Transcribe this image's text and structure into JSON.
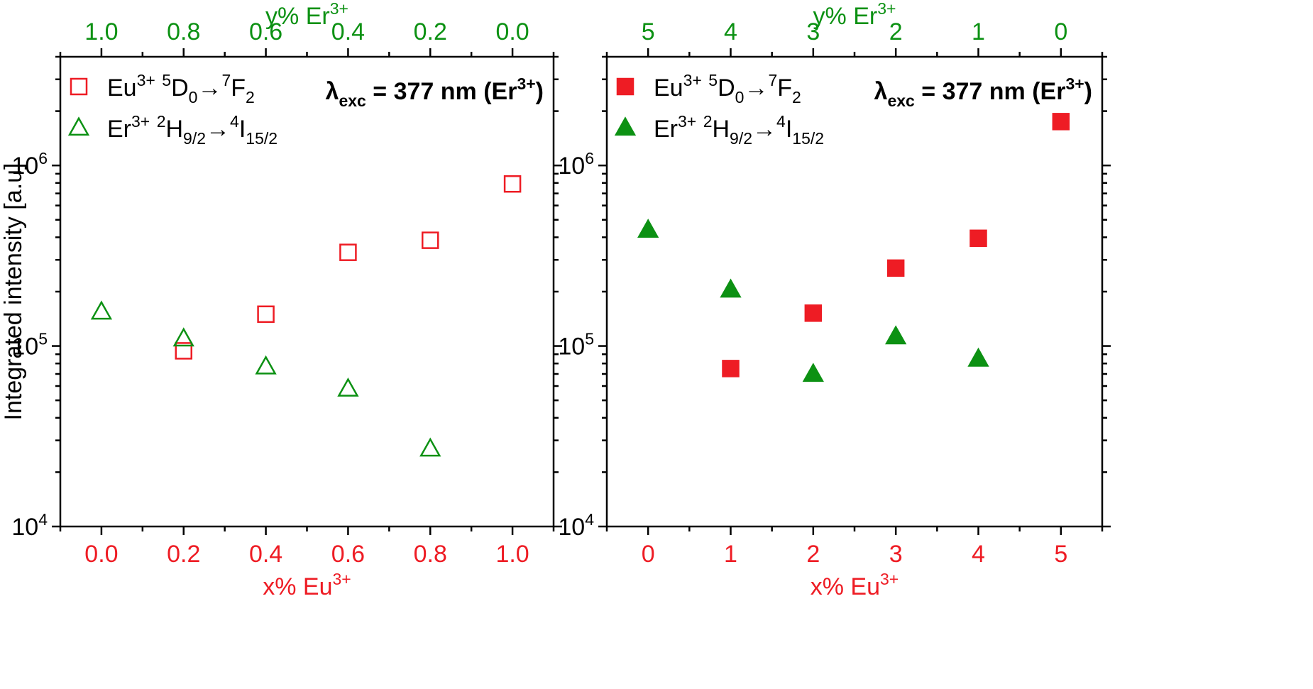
{
  "colors": {
    "eu": "#ee1c24",
    "er": "#0c9113",
    "axis": "#000000"
  },
  "ylabel": "Integrated intensity [a.u]",
  "y_tick_labels": [
    "10",
    "10",
    "10"
  ],
  "y_tick_exponents": [
    "4",
    "5",
    "6"
  ],
  "chart_data": [
    {
      "type": "scatter",
      "panel": "left",
      "xlabel": "x% Eu",
      "xlabel_sup": "3+",
      "x2label": "y% Er",
      "x2label_sup": "3+",
      "x_ticks": [
        "0.0",
        "0.2",
        "0.4",
        "0.6",
        "0.8",
        "1.0"
      ],
      "x2_ticks": [
        "1.0",
        "0.8",
        "0.6",
        "0.4",
        "0.2",
        "0.0"
      ],
      "xlim": [
        -0.1,
        1.1
      ],
      "ylim": [
        10000,
        4000000
      ],
      "yscale": "log",
      "annotation": {
        "lambda": "λ",
        "sub": "exc",
        "text": " = 377 nm (Er",
        "sup": "3+",
        "close": ")"
      },
      "legend_position": "top-left",
      "series": [
        {
          "name": "Eu",
          "name_sup": "3+",
          "level_sup": "5",
          "level": "D",
          "level_sub": "0",
          "arrow": "→",
          "final_sup": "7",
          "final": "F",
          "final_sub": "2",
          "marker": "square-open",
          "color": "#ee1c24",
          "x": [
            0.2,
            0.4,
            0.6,
            0.8,
            1.0
          ],
          "y": [
            94000,
            150000,
            330000,
            385000,
            790000
          ]
        },
        {
          "name": "Er",
          "name_sup": "3+",
          "level_sup": "2",
          "level": "H",
          "level_sub": "9/2",
          "arrow": "→",
          "final_sup": "4",
          "final": "I",
          "final_sub": "15/2",
          "marker": "triangle-open",
          "color": "#0c9113",
          "x": [
            0.0,
            0.2,
            0.4,
            0.6,
            0.8
          ],
          "y": [
            155000,
            110000,
            77000,
            58000,
            27000
          ]
        }
      ]
    },
    {
      "type": "scatter",
      "panel": "right",
      "xlabel": "x% Eu",
      "xlabel_sup": "3+",
      "x2label": "y% Er",
      "x2label_sup": "3+",
      "x_ticks": [
        "0",
        "1",
        "2",
        "3",
        "4",
        "5"
      ],
      "x2_ticks": [
        "5",
        "4",
        "3",
        "2",
        "1",
        "0"
      ],
      "xlim": [
        -0.5,
        5.5
      ],
      "ylim": [
        10000,
        4000000
      ],
      "yscale": "log",
      "annotation": {
        "lambda": "λ",
        "sub": "exc",
        "text": " = 377 nm (Er",
        "sup": "3+",
        "close": ")"
      },
      "legend_position": "top-left",
      "series": [
        {
          "name": "Eu",
          "name_sup": "3+",
          "level_sup": "5",
          "level": "D",
          "level_sub": "0",
          "arrow": "→",
          "final_sup": "7",
          "final": "F",
          "final_sub": "2",
          "marker": "square-filled",
          "color": "#ee1c24",
          "x": [
            1,
            2,
            3,
            4,
            5
          ],
          "y": [
            75000,
            152000,
            270000,
            395000,
            1750000
          ]
        },
        {
          "name": "Er",
          "name_sup": "3+",
          "level_sup": "2",
          "level": "H",
          "level_sub": "9/2",
          "arrow": "→",
          "final_sup": "4",
          "final": "I",
          "final_sub": "15/2",
          "marker": "triangle-filled",
          "color": "#0c9113",
          "x": [
            0,
            1,
            2,
            3,
            4
          ],
          "y": [
            440000,
            205000,
            70000,
            113000,
            85000
          ]
        }
      ]
    }
  ]
}
